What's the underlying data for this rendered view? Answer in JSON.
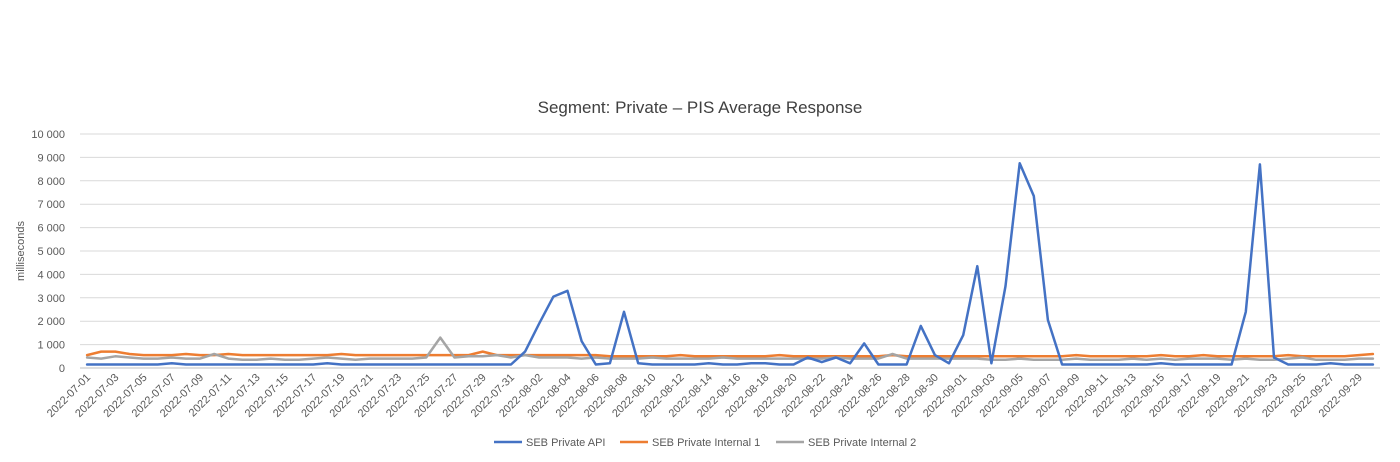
{
  "chart_data": {
    "type": "line",
    "title": "Segment: Private – PIS Average Response",
    "ylabel": "milliseconds",
    "xlabel": "",
    "ylim": [
      0,
      10000
    ],
    "yticks": [
      0,
      1000,
      2000,
      3000,
      4000,
      5000,
      6000,
      7000,
      8000,
      9000,
      10000
    ],
    "ytick_labels": [
      "0",
      "1 000",
      "2 000",
      "3 000",
      "4 000",
      "5 000",
      "6 000",
      "7 000",
      "8 000",
      "9 000",
      "10 000"
    ],
    "grid": "horizontal",
    "legend_position": "bottom",
    "x": [
      "2022-07-01",
      "2022-07-02",
      "2022-07-03",
      "2022-07-04",
      "2022-07-05",
      "2022-07-06",
      "2022-07-07",
      "2022-07-08",
      "2022-07-09",
      "2022-07-10",
      "2022-07-11",
      "2022-07-12",
      "2022-07-13",
      "2022-07-14",
      "2022-07-15",
      "2022-07-16",
      "2022-07-17",
      "2022-07-18",
      "2022-07-19",
      "2022-07-20",
      "2022-07-21",
      "2022-07-22",
      "2022-07-23",
      "2022-07-24",
      "2022-07-25",
      "2022-07-26",
      "2022-07-27",
      "2022-07-28",
      "2022-07-29",
      "2022-07-30",
      "2022-07-31",
      "2022-08-01",
      "2022-08-02",
      "2022-08-03",
      "2022-08-04",
      "2022-08-05",
      "2022-08-06",
      "2022-08-07",
      "2022-08-08",
      "2022-08-09",
      "2022-08-10",
      "2022-08-11",
      "2022-08-12",
      "2022-08-13",
      "2022-08-14",
      "2022-08-15",
      "2022-08-16",
      "2022-08-17",
      "2022-08-18",
      "2022-08-19",
      "2022-08-20",
      "2022-08-21",
      "2022-08-22",
      "2022-08-23",
      "2022-08-24",
      "2022-08-25",
      "2022-08-26",
      "2022-08-27",
      "2022-08-28",
      "2022-08-29",
      "2022-08-30",
      "2022-08-31",
      "2022-09-01",
      "2022-09-02",
      "2022-09-03",
      "2022-09-04",
      "2022-09-05",
      "2022-09-06",
      "2022-09-07",
      "2022-09-08",
      "2022-09-09",
      "2022-09-10",
      "2022-09-11",
      "2022-09-12",
      "2022-09-13",
      "2022-09-14",
      "2022-09-15",
      "2022-09-16",
      "2022-09-17",
      "2022-09-18",
      "2022-09-19",
      "2022-09-20",
      "2022-09-21",
      "2022-09-22",
      "2022-09-23",
      "2022-09-24",
      "2022-09-25",
      "2022-09-26",
      "2022-09-27",
      "2022-09-28",
      "2022-09-29",
      "2022-09-30"
    ],
    "x_tick_labels": [
      "2022-07-01",
      "2022-07-03",
      "2022-07-05",
      "2022-07-07",
      "2022-07-09",
      "2022-07-11",
      "2022-07-13",
      "2022-07-15",
      "2022-07-17",
      "2022-07-19",
      "2022-07-21",
      "2022-07-23",
      "2022-07-25",
      "2022-07-27",
      "2022-07-29",
      "2022-07-31",
      "2022-08-02",
      "2022-08-04",
      "2022-08-06",
      "2022-08-08",
      "2022-08-10",
      "2022-08-12",
      "2022-08-14",
      "2022-08-16",
      "2022-08-18",
      "2022-08-20",
      "2022-08-22",
      "2022-08-24",
      "2022-08-26",
      "2022-08-28",
      "2022-08-30",
      "2022-09-01",
      "2022-09-03",
      "2022-09-05",
      "2022-09-07",
      "2022-09-09",
      "2022-09-11",
      "2022-09-13",
      "2022-09-15",
      "2022-09-17",
      "2022-09-19",
      "2022-09-21",
      "2022-09-23",
      "2022-09-25",
      "2022-09-27",
      "2022-09-29"
    ],
    "series": [
      {
        "name": "SEB Private API",
        "color": "#4472c4",
        "values": [
          150,
          150,
          150,
          150,
          150,
          150,
          200,
          150,
          150,
          150,
          150,
          150,
          150,
          150,
          150,
          150,
          150,
          200,
          150,
          150,
          150,
          150,
          150,
          150,
          150,
          150,
          150,
          150,
          150,
          150,
          150,
          700,
          1900,
          3050,
          3300,
          1150,
          150,
          200,
          2400,
          200,
          150,
          150,
          150,
          150,
          200,
          150,
          150,
          200,
          200,
          150,
          150,
          450,
          250,
          450,
          200,
          1050,
          150,
          150,
          150,
          1800,
          550,
          200,
          1400,
          4350,
          200,
          3500,
          8750,
          7350,
          2050,
          150,
          150,
          150,
          150,
          150,
          150,
          150,
          200,
          150,
          150,
          150,
          150,
          150,
          2400,
          8700,
          450,
          150,
          150,
          150,
          200,
          150,
          150,
          150
        ]
      },
      {
        "name": "SEB Private Internal 1",
        "color": "#ed7d31",
        "values": [
          550,
          700,
          700,
          600,
          550,
          550,
          550,
          600,
          550,
          550,
          600,
          550,
          550,
          550,
          550,
          550,
          550,
          550,
          600,
          550,
          550,
          550,
          550,
          550,
          550,
          550,
          550,
          550,
          700,
          550,
          550,
          550,
          550,
          550,
          550,
          550,
          550,
          500,
          500,
          500,
          500,
          500,
          550,
          500,
          500,
          500,
          500,
          500,
          500,
          550,
          500,
          500,
          500,
          500,
          500,
          500,
          500,
          550,
          500,
          500,
          500,
          500,
          500,
          500,
          500,
          500,
          500,
          500,
          500,
          500,
          550,
          500,
          500,
          500,
          500,
          500,
          550,
          500,
          500,
          550,
          500,
          500,
          500,
          500,
          500,
          550,
          500,
          500,
          500,
          500,
          550,
          600
        ]
      },
      {
        "name": "SEB Private Internal 2",
        "color": "#a5a5a5",
        "values": [
          450,
          400,
          500,
          450,
          400,
          400,
          450,
          400,
          400,
          600,
          400,
          350,
          350,
          400,
          350,
          350,
          400,
          450,
          400,
          350,
          400,
          400,
          400,
          400,
          450,
          1300,
          450,
          500,
          500,
          550,
          450,
          550,
          450,
          450,
          450,
          400,
          450,
          400,
          400,
          400,
          450,
          400,
          400,
          400,
          400,
          450,
          400,
          400,
          400,
          400,
          400,
          400,
          400,
          450,
          400,
          400,
          400,
          600,
          400,
          400,
          400,
          400,
          400,
          400,
          350,
          350,
          400,
          350,
          350,
          350,
          400,
          350,
          350,
          350,
          400,
          350,
          400,
          350,
          400,
          400,
          400,
          350,
          400,
          350,
          350,
          400,
          450,
          350,
          350,
          350,
          400,
          400
        ]
      }
    ]
  }
}
